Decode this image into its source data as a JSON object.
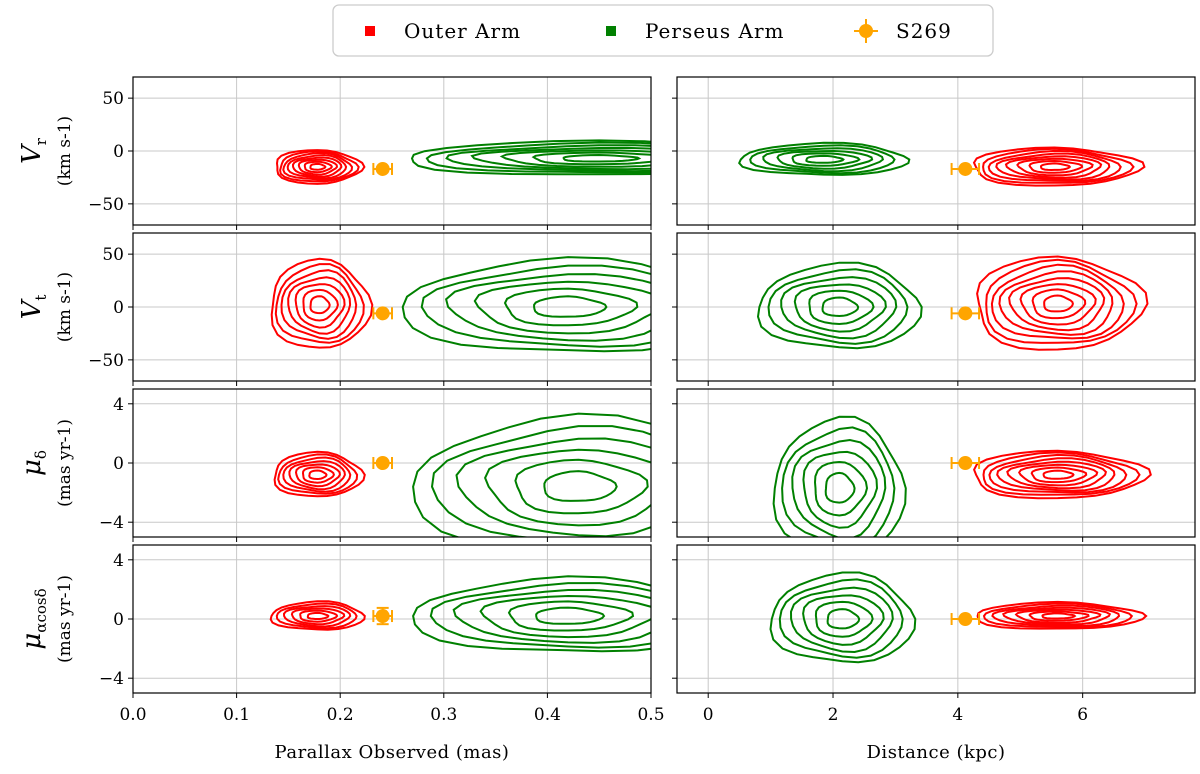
{
  "chart_data": {
    "type": "contour",
    "legend": {
      "placement": "top-center",
      "entries": [
        {
          "label": "Outer Arm",
          "color": "#ff0000",
          "marker": "square"
        },
        {
          "label": "Perseus Arm",
          "color": "#008000",
          "marker": "square"
        },
        {
          "label": "S269",
          "color": "#ffa500",
          "marker": "circle-errorbar"
        }
      ]
    },
    "grid": true,
    "columns": [
      {
        "xlabel": "Parallax Observed (mas)",
        "xlim": [
          0.0,
          0.5
        ],
        "xticks": [
          "0.0",
          "0.1",
          "0.2",
          "0.3",
          "0.4",
          "0.5"
        ]
      },
      {
        "xlabel": "Distance (kpc)",
        "xlim": [
          -0.5,
          7.8
        ],
        "xticks": [
          "0",
          "2",
          "4",
          "6"
        ]
      }
    ],
    "rows": [
      {
        "ylabel_main": "V",
        "ylabel_sub": "r",
        "ylabel_unit": "(km s-1)",
        "ylim": [
          -70,
          70
        ],
        "yticks": [
          {
            "v": 50,
            "t": "50"
          },
          {
            "v": 0,
            "t": "0"
          },
          {
            "v": -50,
            "t": "−50"
          }
        ],
        "panels": [
          {
            "s269": {
              "x": 0.241,
              "xerr": 0.009,
              "y": -17,
              "yerr": 0
            },
            "contours": [
              {
                "color": "#ff0000",
                "cx": 0.178,
                "cy": -15,
                "rx": 0.042,
                "ry": 16,
                "levels": 8
              },
              {
                "color": "#008000",
                "cx": 0.45,
                "cy": -7,
                "rx": 0.19,
                "ry": 16,
                "levels": 7
              }
            ]
          },
          {
            "s269": {
              "x": 4.12,
              "xerr": 0.22,
              "y": -17,
              "yerr": 0
            },
            "contours": [
              {
                "color": "#008000",
                "cx": 1.85,
                "cy": -8,
                "rx": 1.35,
                "ry": 15,
                "levels": 6
              },
              {
                "color": "#ff0000",
                "cx": 5.55,
                "cy": -15,
                "rx": 1.35,
                "ry": 18,
                "levels": 8
              }
            ]
          }
        ]
      },
      {
        "ylabel_main": "V",
        "ylabel_sub": "t",
        "ylabel_unit": "(km s-1)",
        "ylim": [
          -70,
          70
        ],
        "yticks": [
          {
            "v": 50,
            "t": "50"
          },
          {
            "v": 0,
            "t": "0"
          },
          {
            "v": -50,
            "t": "−50"
          }
        ],
        "panels": [
          {
            "s269": {
              "x": 0.241,
              "xerr": 0.009,
              "y": -6,
              "yerr": 0
            },
            "contours": [
              {
                "color": "#ff0000",
                "cx": 0.18,
                "cy": 2,
                "rx": 0.048,
                "ry": 42,
                "levels": 7
              },
              {
                "color": "#008000",
                "cx": 0.42,
                "cy": 0,
                "rx": 0.16,
                "ry": 44,
                "levels": 6
              }
            ]
          },
          {
            "s269": {
              "x": 4.12,
              "xerr": 0.22,
              "y": -6,
              "yerr": 0
            },
            "contours": [
              {
                "color": "#008000",
                "cx": 2.1,
                "cy": 0,
                "rx": 1.3,
                "ry": 40,
                "levels": 6
              },
              {
                "color": "#ff0000",
                "cx": 5.6,
                "cy": 3,
                "rx": 1.35,
                "ry": 44,
                "levels": 8
              }
            ]
          }
        ]
      },
      {
        "ylabel_main": "μ",
        "ylabel_sub": "δ",
        "ylabel_unit": "(mas yr-1)",
        "ylim": [
          -5,
          5
        ],
        "yticks": [
          {
            "v": 4,
            "t": "4"
          },
          {
            "v": 0,
            "t": "0"
          },
          {
            "v": -4,
            "t": "−4"
          }
        ],
        "panels": [
          {
            "s269": {
              "x": 0.241,
              "xerr": 0.009,
              "y": 0,
              "yerr": 0
            },
            "contours": [
              {
                "color": "#ff0000",
                "cx": 0.178,
                "cy": -0.8,
                "rx": 0.043,
                "ry": 1.5,
                "levels": 7
              },
              {
                "color": "#008000",
                "cx": 0.43,
                "cy": -1.6,
                "rx": 0.16,
                "ry": 4.6,
                "levels": 6
              }
            ]
          },
          {
            "s269": {
              "x": 4.12,
              "xerr": 0.22,
              "y": 0,
              "yerr": 0
            },
            "contours": [
              {
                "color": "#008000",
                "cx": 2.1,
                "cy": -1.7,
                "rx": 1.05,
                "ry": 4.6,
                "levels": 6
              },
              {
                "color": "#ff0000",
                "cx": 5.6,
                "cy": -0.8,
                "rx": 1.4,
                "ry": 1.6,
                "levels": 8
              }
            ]
          }
        ]
      },
      {
        "ylabel_main": "μ",
        "ylabel_sub": "αcosδ",
        "ylabel_unit": "(mas yr-1)",
        "ylim": [
          -5,
          5
        ],
        "yticks": [
          {
            "v": 4,
            "t": "4"
          },
          {
            "v": 0,
            "t": "0"
          },
          {
            "v": -4,
            "t": "−4"
          }
        ],
        "panels": [
          {
            "s269": {
              "x": 0.241,
              "xerr": 0.009,
              "y": 0.2,
              "yerr": 0.55
            },
            "contours": [
              {
                "color": "#ff0000",
                "cx": 0.178,
                "cy": 0.2,
                "rx": 0.045,
                "ry": 0.95,
                "levels": 6
              },
              {
                "color": "#008000",
                "cx": 0.42,
                "cy": 0.2,
                "rx": 0.15,
                "ry": 2.5,
                "levels": 6
              }
            ]
          },
          {
            "s269": {
              "x": 4.12,
              "xerr": 0.22,
              "y": 0,
              "yerr": 0
            },
            "contours": [
              {
                "color": "#008000",
                "cx": 2.15,
                "cy": 0,
                "rx": 1.15,
                "ry": 3.0,
                "levels": 6
              },
              {
                "color": "#ff0000",
                "cx": 5.6,
                "cy": 0.2,
                "rx": 1.35,
                "ry": 0.9,
                "levels": 7
              }
            ]
          }
        ]
      }
    ]
  }
}
